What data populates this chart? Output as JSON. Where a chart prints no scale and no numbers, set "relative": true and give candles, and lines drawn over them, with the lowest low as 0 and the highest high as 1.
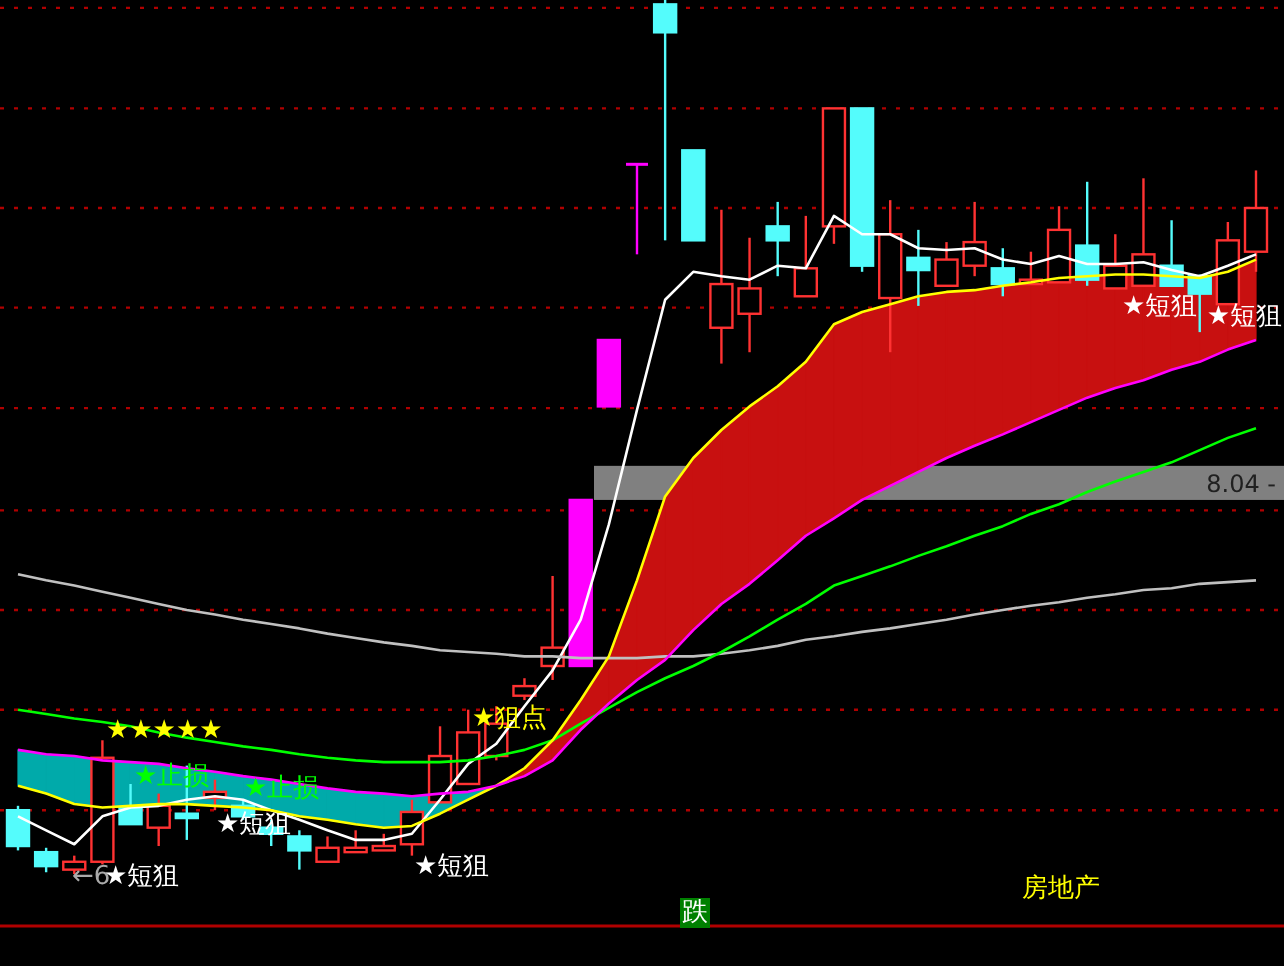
{
  "chart_data": {
    "type": "candlestick",
    "relative": true,
    "categories": [
      null,
      null,
      null,
      null,
      null,
      null,
      null,
      null,
      null,
      null,
      null,
      null,
      null,
      null,
      null,
      null,
      null,
      null,
      null,
      null,
      null,
      null,
      null,
      null,
      null,
      null,
      null,
      null,
      null,
      null,
      null,
      null,
      null,
      null,
      null,
      null,
      null,
      null,
      null,
      null,
      null,
      null,
      null,
      null,
      null
    ],
    "ohlc": [
      [
        0.073,
        0.078,
        0.027,
        0.032
      ],
      [
        0.025,
        0.03,
        0.002,
        0.009
      ],
      [
        0.005,
        0.021,
        0,
        0.014
      ],
      [
        0.014,
        0.153,
        0.011,
        0.133
      ],
      [
        0.076,
        0.103,
        0.057,
        0.057
      ],
      [
        0.053,
        0.092,
        0.032,
        0.078
      ],
      [
        0.069,
        0.124,
        0.039,
        0.064
      ],
      [
        0.087,
        0.108,
        0.073,
        0.094
      ],
      [
        0.078,
        0.085,
        0.062,
        0.066
      ],
      [
        0.053,
        0.062,
        0.032,
        0.046
      ],
      [
        0.043,
        0.05,
        0.005,
        0.027
      ],
      [
        0.014,
        0.043,
        0.014,
        0.03
      ],
      [
        0.025,
        0.05,
        0.025,
        0.03
      ],
      [
        0.027,
        0.046,
        0.027,
        0.032
      ],
      [
        0.034,
        0.085,
        0.021,
        0.071
      ],
      [
        0.082,
        0.169,
        0.082,
        0.135
      ],
      [
        0.103,
        0.188,
        0.103,
        0.162
      ],
      [
        0.135,
        0.192,
        0.13,
        0.172
      ],
      [
        0.204,
        0.224,
        0.199,
        0.215
      ],
      [
        0.238,
        0.341,
        0.222,
        0.259
      ],
      [
        0.238,
        0.428,
        0.238,
        0.428
      ],
      [
        0.535,
        0.611,
        0.535,
        0.611
      ],
      [
        0.812,
        0.812,
        0.709,
        0.812
      ],
      [
        0.995,
        1,
        0.725,
        0.963
      ],
      [
        0.828,
        0.828,
        0.725,
        0.725
      ],
      [
        0.625,
        0.76,
        0.584,
        0.675
      ],
      [
        0.641,
        0.728,
        0.597,
        0.67
      ],
      [
        0.741,
        0.769,
        0.684,
        0.725
      ],
      [
        0.661,
        0.753,
        0.661,
        0.693
      ],
      [
        0.741,
        0.876,
        0.721,
        0.876
      ],
      [
        0.876,
        0.876,
        0.689,
        0.696
      ],
      [
        0.659,
        0.771,
        0.597,
        0.732
      ],
      [
        0.705,
        0.737,
        0.65,
        0.691
      ],
      [
        0.673,
        0.723,
        0.673,
        0.703
      ],
      [
        0.696,
        0.769,
        0.684,
        0.723
      ],
      [
        0.693,
        0.716,
        0.661,
        0.675
      ],
      [
        0.675,
        0.712,
        0.675,
        0.68
      ],
      [
        0.677,
        0.764,
        0.677,
        0.737
      ],
      [
        0.719,
        0.792,
        0.673,
        0.68
      ],
      [
        0.67,
        0.732,
        0.67,
        0.696
      ],
      [
        0.673,
        0.796,
        0.673,
        0.709
      ],
      [
        0.696,
        0.748,
        0.673,
        0.673
      ],
      [
        0.684,
        0.686,
        0.62,
        0.664
      ],
      [
        0.652,
        0.746,
        0.652,
        0.725
      ],
      [
        0.712,
        0.805,
        0.689,
        0.762
      ]
    ],
    "colors": [
      "#54fcfc",
      "#54fcfc",
      "#ff3232",
      "#ff3232",
      "#54fcfc",
      "#ff3232",
      "#54fcfc",
      "#ff3232",
      "#54fcfc",
      "#54fcfc",
      "#54fcfc",
      "#ff3232",
      "#ff3232",
      "#ff3232",
      "#ff3232",
      "#ff3232",
      "#ff3232",
      "#ff3232",
      "#ff3232",
      "#ff3232",
      "#ff00ff",
      "#ff00ff",
      "#ff00ff",
      "#54fcfc",
      "#54fcfc",
      "#ff3232",
      "#ff3232",
      "#54fcfc",
      "#ff3232",
      "#ff3232",
      "#54fcfc",
      "#ff3232",
      "#54fcfc",
      "#ff3232",
      "#ff3232",
      "#54fcfc",
      "#ff3232",
      "#ff3232",
      "#54fcfc",
      "#ff3232",
      "#ff3232",
      "#54fcfc",
      "#54fcfc",
      "#ff3232",
      "#ff3232"
    ],
    "series": [
      {
        "type": "line",
        "color": "#ffffff",
        "values": [
          0.066,
          0.05,
          0.034,
          0.066,
          0.076,
          0.078,
          0.085,
          0.089,
          0.085,
          0.073,
          0.062,
          0.05,
          0.039,
          0.039,
          0.046,
          0.085,
          0.126,
          0.149,
          0.192,
          0.233,
          0.291,
          0.4,
          0.531,
          0.657,
          0.689,
          0.684,
          0.68,
          0.696,
          0.693,
          0.753,
          0.732,
          0.732,
          0.716,
          0.714,
          0.716,
          0.703,
          0.698,
          0.707,
          0.698,
          0.698,
          0.7,
          0.691,
          0.684,
          0.696,
          0.709
        ]
      },
      {
        "type": "line",
        "color": "#c0c0c0",
        "values": [
          0.343,
          0.336,
          0.33,
          0.323,
          0.316,
          0.309,
          0.302,
          0.297,
          0.291,
          0.286,
          0.281,
          0.275,
          0.27,
          0.265,
          0.261,
          0.256,
          0.254,
          0.252,
          0.249,
          0.249,
          0.247,
          0.247,
          0.247,
          0.249,
          0.249,
          0.252,
          0.256,
          0.261,
          0.268,
          0.272,
          0.277,
          0.281,
          0.286,
          0.291,
          0.297,
          0.302,
          0.307,
          0.311,
          0.316,
          0.32,
          0.325,
          0.327,
          0.332,
          0.334,
          0.336
        ]
      },
      {
        "type": "line",
        "color": "#00ff00",
        "values": [
          0.188,
          0.183,
          0.178,
          0.174,
          0.169,
          0.162,
          0.156,
          0.151,
          0.146,
          0.142,
          0.137,
          0.133,
          0.13,
          0.128,
          0.128,
          0.128,
          0.13,
          0.135,
          0.142,
          0.153,
          0.172,
          0.19,
          0.208,
          0.224,
          0.238,
          0.254,
          0.272,
          0.291,
          0.309,
          0.33,
          0.341,
          0.352,
          0.364,
          0.375,
          0.387,
          0.398,
          0.412,
          0.423,
          0.437,
          0.449,
          0.46,
          0.471,
          0.485,
          0.499,
          0.51
        ]
      },
      {
        "type": "line",
        "color": "#ffff00",
        "values": [
          0.101,
          0.092,
          0.08,
          0.076,
          0.078,
          0.08,
          0.08,
          0.078,
          0.076,
          0.073,
          0.066,
          0.062,
          0.057,
          0.053,
          0.055,
          0.069,
          0.085,
          0.101,
          0.121,
          0.153,
          0.199,
          0.249,
          0.336,
          0.432,
          0.476,
          0.508,
          0.535,
          0.558,
          0.586,
          0.629,
          0.643,
          0.652,
          0.661,
          0.666,
          0.668,
          0.673,
          0.677,
          0.682,
          0.684,
          0.686,
          0.686,
          0.684,
          0.682,
          0.689,
          0.703
        ]
      },
      {
        "type": "line",
        "color": "#ff00ff",
        "values": [
          0.142,
          0.137,
          0.135,
          0.13,
          0.128,
          0.126,
          0.121,
          0.117,
          0.112,
          0.108,
          0.103,
          0.098,
          0.094,
          0.092,
          0.089,
          0.092,
          0.094,
          0.101,
          0.112,
          0.13,
          0.165,
          0.195,
          0.222,
          0.245,
          0.279,
          0.309,
          0.332,
          0.359,
          0.387,
          0.407,
          0.428,
          0.444,
          0.46,
          0.476,
          0.49,
          0.503,
          0.517,
          0.531,
          0.545,
          0.556,
          0.565,
          0.577,
          0.586,
          0.6,
          0.611
        ]
      }
    ],
    "ref_lines": [
      {
        "axis": "y",
        "value": 0.991,
        "color": "#b00000",
        "line_style": "dotted"
      },
      {
        "axis": "y",
        "value": 0.876,
        "color": "#b00000",
        "line_style": "dotted"
      },
      {
        "axis": "y",
        "value": 0.762,
        "color": "#b00000",
        "line_style": "dotted"
      },
      {
        "axis": "y",
        "value": 0.648,
        "color": "#b00000",
        "line_style": "dotted"
      },
      {
        "axis": "y",
        "value": 0.533,
        "color": "#b00000",
        "line_style": "dotted"
      },
      {
        "axis": "y",
        "value": 0.416,
        "color": "#b00000",
        "line_style": "dotted"
      },
      {
        "axis": "y",
        "value": 0.302,
        "color": "#b00000",
        "line_style": "dotted"
      },
      {
        "axis": "y",
        "value": 0.188,
        "color": "#b00000",
        "line_style": "dotted"
      },
      {
        "axis": "y",
        "value": 0.073,
        "color": "#b00000",
        "line_style": "dotted"
      }
    ],
    "bands": [
      {
        "axis": "y",
        "from": 0.428,
        "to": 0.467,
        "color": "#808080",
        "label": "8.04 -"
      }
    ],
    "annotations": [
      "←6",
      "★短狙",
      "★★★★★",
      "★止损",
      "★止损",
      "★短狙",
      "★短狙",
      "★狙点",
      "★短狙",
      "★短狙",
      "跌",
      "房地产"
    ]
  }
}
